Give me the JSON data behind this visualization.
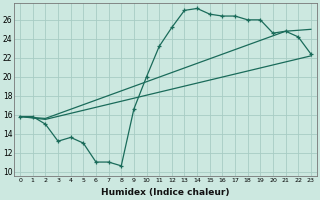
{
  "xlabel": "Humidex (Indice chaleur)",
  "xlim": [
    -0.5,
    23.5
  ],
  "ylim": [
    9.5,
    27.8
  ],
  "yticks": [
    10,
    12,
    14,
    16,
    18,
    20,
    22,
    24,
    26
  ],
  "xticks": [
    0,
    1,
    2,
    3,
    4,
    5,
    6,
    7,
    8,
    9,
    10,
    11,
    12,
    13,
    14,
    15,
    16,
    17,
    18,
    19,
    20,
    21,
    22,
    23
  ],
  "bg_color": "#cce8e0",
  "grid_color": "#a8ccc4",
  "line_color": "#1a6b5a",
  "line1_x": [
    0,
    1,
    2,
    3,
    4,
    5,
    6,
    7,
    8,
    9,
    10,
    11,
    12,
    13,
    14,
    15,
    16,
    17,
    18,
    19,
    20,
    21,
    22,
    23
  ],
  "line1_y": [
    15.8,
    15.8,
    15.0,
    13.2,
    13.6,
    13.0,
    11.0,
    11.0,
    10.6,
    16.6,
    20.0,
    23.2,
    25.2,
    27.0,
    27.2,
    26.6,
    26.4,
    26.4,
    26.0,
    26.0,
    24.6,
    24.8,
    24.2,
    22.4
  ],
  "line2_x": [
    0,
    2,
    23
  ],
  "line2_y": [
    15.8,
    15.5,
    22.2
  ],
  "line3_x": [
    0,
    2,
    21,
    23
  ],
  "line3_y": [
    15.8,
    15.6,
    24.8,
    25.0
  ]
}
